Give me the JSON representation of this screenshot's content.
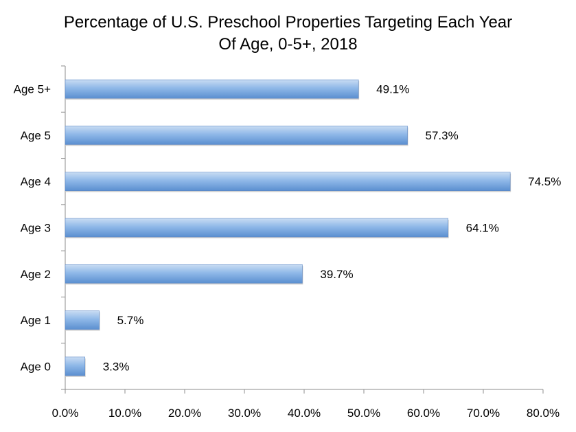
{
  "chart_data": {
    "type": "bar",
    "orientation": "horizontal",
    "title": "Percentage of U.S. Preschool Properties Targeting Each Year Of Age, 0-5+, 2018",
    "title_lines": [
      "Percentage of U.S. Preschool Properties Targeting Each Year",
      "Of Age, 0-5+, 2018"
    ],
    "xlabel": "",
    "ylabel": "",
    "categories": [
      "Age 5+",
      "Age 5",
      "Age 4",
      "Age 3",
      "Age 2",
      "Age 1",
      "Age 0"
    ],
    "values": [
      49.1,
      57.3,
      74.5,
      64.1,
      39.7,
      5.7,
      3.3
    ],
    "value_labels": [
      "49.1%",
      "57.3%",
      "74.5%",
      "64.1%",
      "39.7%",
      "5.7%",
      "3.3%"
    ],
    "xlim": [
      0,
      80
    ],
    "x_ticks": [
      0,
      10,
      20,
      30,
      40,
      50,
      60,
      70,
      80
    ],
    "x_tick_labels": [
      "0.0%",
      "10.0%",
      "20.0%",
      "30.0%",
      "40.0%",
      "50.0%",
      "60.0%",
      "70.0%",
      "80.0%"
    ],
    "grid": false,
    "legend": "none",
    "colors": {
      "bar_light": "#c9dcf3",
      "bar_mid": "#8fb8e8",
      "bar_dark": "#5b8fd0",
      "axis": "#8c8c8c"
    }
  }
}
